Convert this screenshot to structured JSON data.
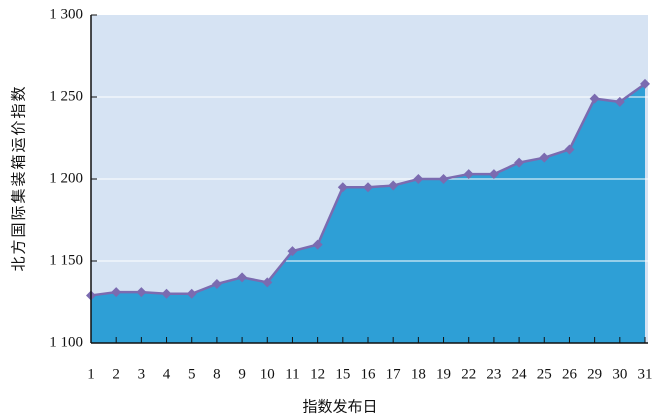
{
  "chart_data": {
    "type": "area",
    "x_label": "指数发布日",
    "y_label": "北方国际集装箱运价指数",
    "categories": [
      "1",
      "2",
      "3",
      "4",
      "5",
      "8",
      "9",
      "10",
      "11",
      "12",
      "15",
      "16",
      "17",
      "18",
      "19",
      "22",
      "23",
      "24",
      "25",
      "26",
      "29",
      "30",
      "31"
    ],
    "series": [
      {
        "name": "北方国际集装箱运价指数",
        "color": "#2e9fd6",
        "values": [
          1129,
          1131,
          1131,
          1130,
          1130,
          1136,
          1140,
          1137,
          1156,
          1160,
          1195,
          1195,
          1196,
          1200,
          1200,
          1203,
          1203,
          1210,
          1213,
          1218,
          1249,
          1247,
          1258
        ]
      }
    ],
    "line_color": "#7b6bb0",
    "background": "#d6e3f3",
    "ylim": [
      1100,
      1300
    ],
    "yticks": [
      {
        "value": 1100,
        "label": "1 100"
      },
      {
        "value": 1150,
        "label": "1 150"
      },
      {
        "value": 1200,
        "label": "1 200"
      },
      {
        "value": 1250,
        "label": "1 250"
      },
      {
        "value": 1300,
        "label": "1 300"
      }
    ],
    "grid": true
  }
}
